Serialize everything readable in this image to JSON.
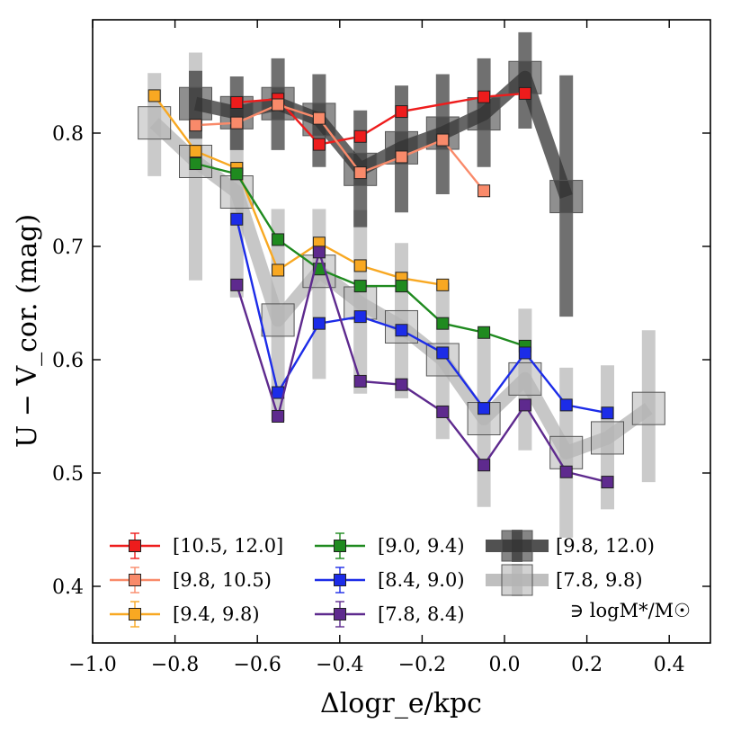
{
  "chart_data": {
    "type": "line",
    "title": "",
    "xlabel": "Δlogr_e/kpc",
    "ylabel": "U − V_cor. (mag)",
    "xlim": [
      -1.0,
      0.5
    ],
    "ylim": [
      0.35,
      0.9
    ],
    "x_ticks": [
      -1.0,
      -0.8,
      -0.6,
      -0.4,
      -0.2,
      0.0,
      0.2,
      0.4
    ],
    "x_tick_labels": [
      "−1.0",
      "−0.8",
      "−0.6",
      "−0.4",
      "−0.2",
      "0.0",
      "0.2",
      "0.4"
    ],
    "y_ticks": [
      0.4,
      0.5,
      0.6,
      0.7,
      0.8
    ],
    "y_tick_labels": [
      "0.4",
      "0.5",
      "0.6",
      "0.7",
      "0.8"
    ],
    "grid": false,
    "legend_placement": "bottom",
    "legend_note": "∋ logM*/M☉",
    "series": [
      {
        "name": "[10.5, 12.0]",
        "color": "#ee1c1c",
        "style": "marker",
        "x": [
          -0.65,
          -0.55,
          -0.45,
          -0.35,
          -0.25,
          -0.05,
          0.05
        ],
        "y": [
          0.827,
          0.83,
          0.79,
          0.797,
          0.819,
          0.832,
          0.835
        ]
      },
      {
        "name": "[9.8, 10.5)",
        "color": "#f98a6a",
        "style": "marker",
        "x": [
          -0.75,
          -0.65,
          -0.55,
          -0.45,
          -0.35,
          -0.25,
          -0.15,
          -0.05
        ],
        "y": [
          0.807,
          0.809,
          0.825,
          0.813,
          0.765,
          0.779,
          0.794,
          0.749
        ]
      },
      {
        "name": "[9.4, 9.8)",
        "color": "#f8a822",
        "style": "marker",
        "x": [
          -0.85,
          -0.75,
          -0.65,
          -0.55,
          -0.45,
          -0.35,
          -0.25,
          -0.15
        ],
        "y": [
          0.833,
          0.784,
          0.769,
          0.679,
          0.703,
          0.683,
          0.672,
          0.666
        ]
      },
      {
        "name": "[9.0, 9.4)",
        "color": "#1f8a1f",
        "style": "marker",
        "x": [
          -0.75,
          -0.65,
          -0.55,
          -0.45,
          -0.35,
          -0.25,
          -0.15,
          -0.05,
          0.05
        ],
        "y": [
          0.773,
          0.764,
          0.706,
          0.68,
          0.665,
          0.665,
          0.632,
          0.624,
          0.612
        ]
      },
      {
        "name": "[8.4, 9.0)",
        "color": "#1c2ce8",
        "style": "marker",
        "x": [
          -0.65,
          -0.55,
          -0.45,
          -0.35,
          -0.25,
          -0.15,
          -0.05,
          0.05,
          0.15,
          0.25
        ],
        "y": [
          0.724,
          0.571,
          0.632,
          0.638,
          0.626,
          0.606,
          0.557,
          0.606,
          0.56,
          0.553
        ]
      },
      {
        "name": "[7.8, 8.4)",
        "color": "#5e2a8e",
        "style": "marker",
        "x": [
          -0.65,
          -0.55,
          -0.45,
          -0.35,
          -0.25,
          -0.15,
          -0.05,
          0.05,
          0.15,
          0.25
        ],
        "y": [
          0.666,
          0.55,
          0.695,
          0.581,
          0.578,
          0.554,
          0.507,
          0.56,
          0.501,
          0.492
        ]
      },
      {
        "name": "[9.8, 12.0)",
        "color": "#333333",
        "style": "band",
        "x": [
          -0.75,
          -0.65,
          -0.55,
          -0.45,
          -0.35,
          -0.25,
          -0.15,
          -0.05,
          0.05,
          0.15
        ],
        "y": [
          0.826,
          0.818,
          0.826,
          0.812,
          0.768,
          0.787,
          0.8,
          0.817,
          0.849,
          0.744
        ],
        "err_low": [
          0.795,
          0.785,
          0.785,
          0.77,
          0.717,
          0.73,
          0.746,
          0.77,
          0.804,
          0.638
        ],
        "err_high": [
          0.855,
          0.85,
          0.866,
          0.852,
          0.82,
          0.842,
          0.852,
          0.866,
          0.889,
          0.851
        ]
      },
      {
        "name": "[7.8, 9.8)",
        "color": "#b4b4b4",
        "style": "band",
        "x": [
          -0.85,
          -0.75,
          -0.65,
          -0.55,
          -0.45,
          -0.35,
          -0.25,
          -0.15,
          -0.05,
          0.05,
          0.15,
          0.25,
          0.35
        ],
        "y": [
          0.809,
          0.775,
          0.748,
          0.635,
          0.678,
          0.65,
          0.629,
          0.6,
          0.548,
          0.583,
          0.518,
          0.531,
          0.557
        ],
        "err_low": [
          0.762,
          0.67,
          0.655,
          0.546,
          0.583,
          0.57,
          0.566,
          0.53,
          0.47,
          0.52,
          0.443,
          0.468,
          0.492
        ],
        "err_high": [
          0.853,
          0.871,
          0.807,
          0.733,
          0.733,
          0.732,
          0.703,
          0.668,
          0.621,
          0.645,
          0.593,
          0.595,
          0.626
        ]
      }
    ]
  }
}
